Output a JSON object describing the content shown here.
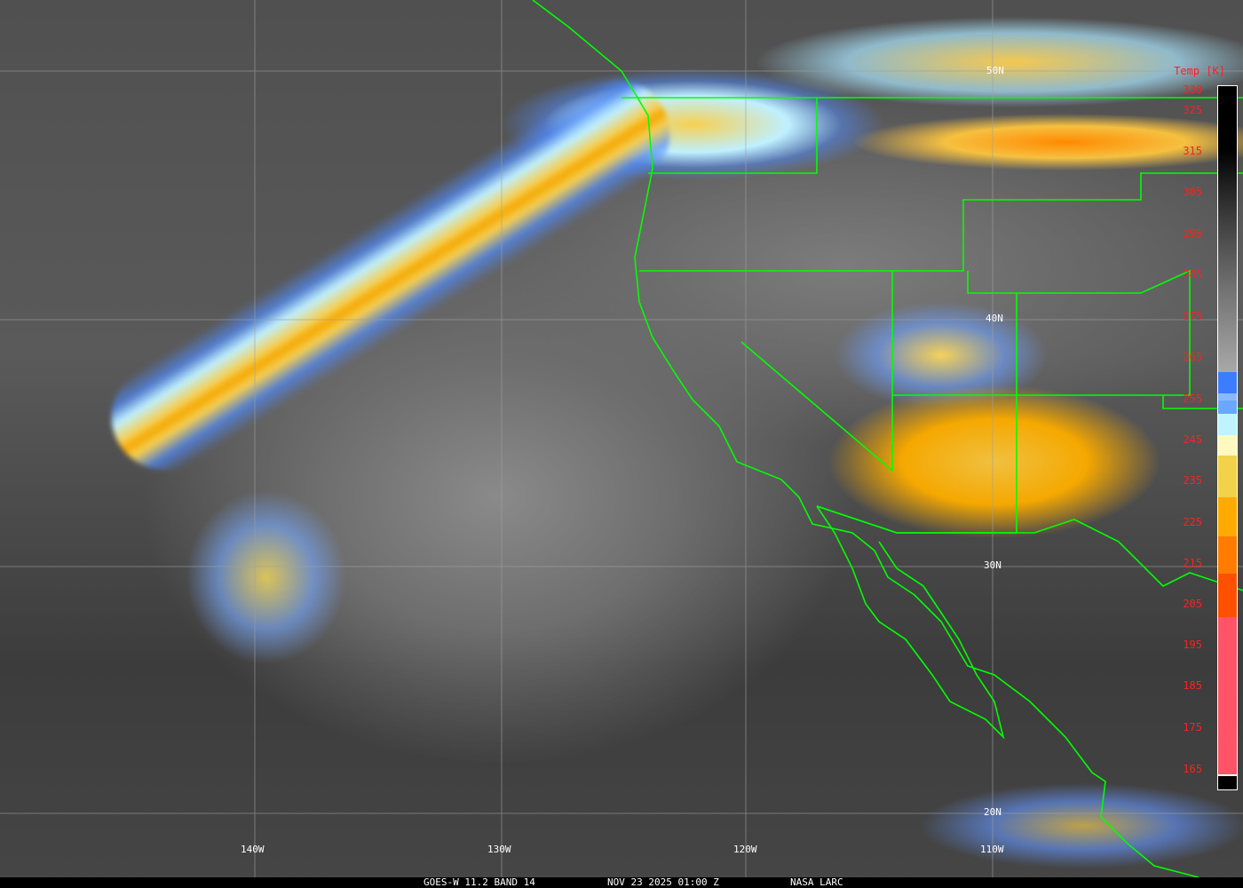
{
  "satellite": "GOES-W",
  "caption": {
    "instrument": "GOES-W 11.2 BAND 14",
    "datetime": "NOV 23 2025 01:00 Z",
    "source": "NASA LARC"
  },
  "latitude_labels": [
    "50N",
    "40N",
    "30N",
    "20N"
  ],
  "longitude_labels": [
    "140W",
    "130W",
    "120W",
    "110W"
  ],
  "colorbar": {
    "title": "Temp [K]",
    "ticks": [
      "330",
      "325",
      "315",
      "305",
      "295",
      "285",
      "275",
      "265",
      "255",
      "245",
      "235",
      "225",
      "215",
      "205",
      "195",
      "185",
      "175",
      "165"
    ],
    "colors": {
      "cold_black": "#000000",
      "gray": "#9a9a9a",
      "blue": "#3c7cff",
      "light_blue": "#8ab8ff",
      "mid_blue": "#6aa8ff",
      "cyan": "#bff4ff",
      "pale_yellow": "#fff8c0",
      "yellow": "#f2d24a",
      "orange": "#ffaa00",
      "dark_orange": "#ff7c00",
      "red_orange": "#ff5000",
      "pink": "#ff5468"
    }
  },
  "overlay_colors": {
    "borders": "#00ff00",
    "grid": "#a0a0a0",
    "tick_labels": "#ff2020"
  }
}
